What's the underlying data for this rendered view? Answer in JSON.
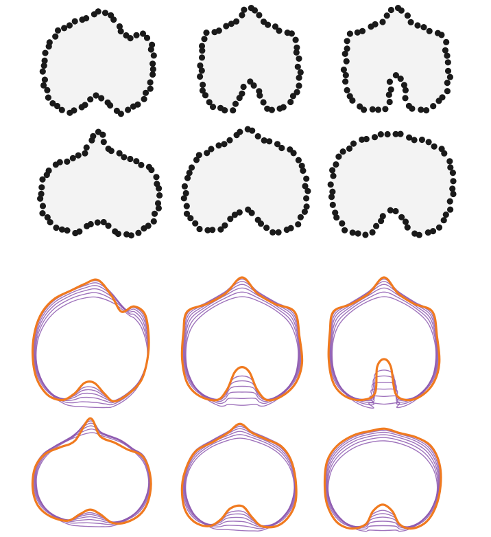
{
  "figure": {
    "rows": [
      {
        "id": "point-samples",
        "shapes": [
          {
            "id": "shape-1",
            "variant": "three-lobe"
          },
          {
            "id": "shape-2",
            "variant": "peaked-notched"
          },
          {
            "id": "shape-3",
            "variant": "peaked-deep-notch"
          }
        ]
      },
      {
        "id": "point-samples",
        "shapes": [
          {
            "id": "shape-4",
            "variant": "three-lobe-tall"
          },
          {
            "id": "shape-5",
            "variant": "peaked-wide"
          },
          {
            "id": "shape-6",
            "variant": "round-wide"
          }
        ]
      },
      {
        "id": "reconstructions",
        "shapes": [
          {
            "id": "shape-1",
            "variant": "three-lobe"
          },
          {
            "id": "shape-2",
            "variant": "peaked-notched"
          },
          {
            "id": "shape-3",
            "variant": "peaked-deep-notch"
          }
        ]
      },
      {
        "id": "reconstructions",
        "shapes": [
          {
            "id": "shape-4",
            "variant": "three-lobe-tall"
          },
          {
            "id": "shape-5",
            "variant": "peaked-wide"
          },
          {
            "id": "shape-6",
            "variant": "round-wide"
          }
        ]
      }
    ],
    "colors": {
      "fill": "#f3f3f3",
      "point": "#1a1a1a",
      "approximation": "#8e5bb0",
      "target": "#f07a1f",
      "background": "#ffffff"
    },
    "approximations_per_shape": 6
  }
}
